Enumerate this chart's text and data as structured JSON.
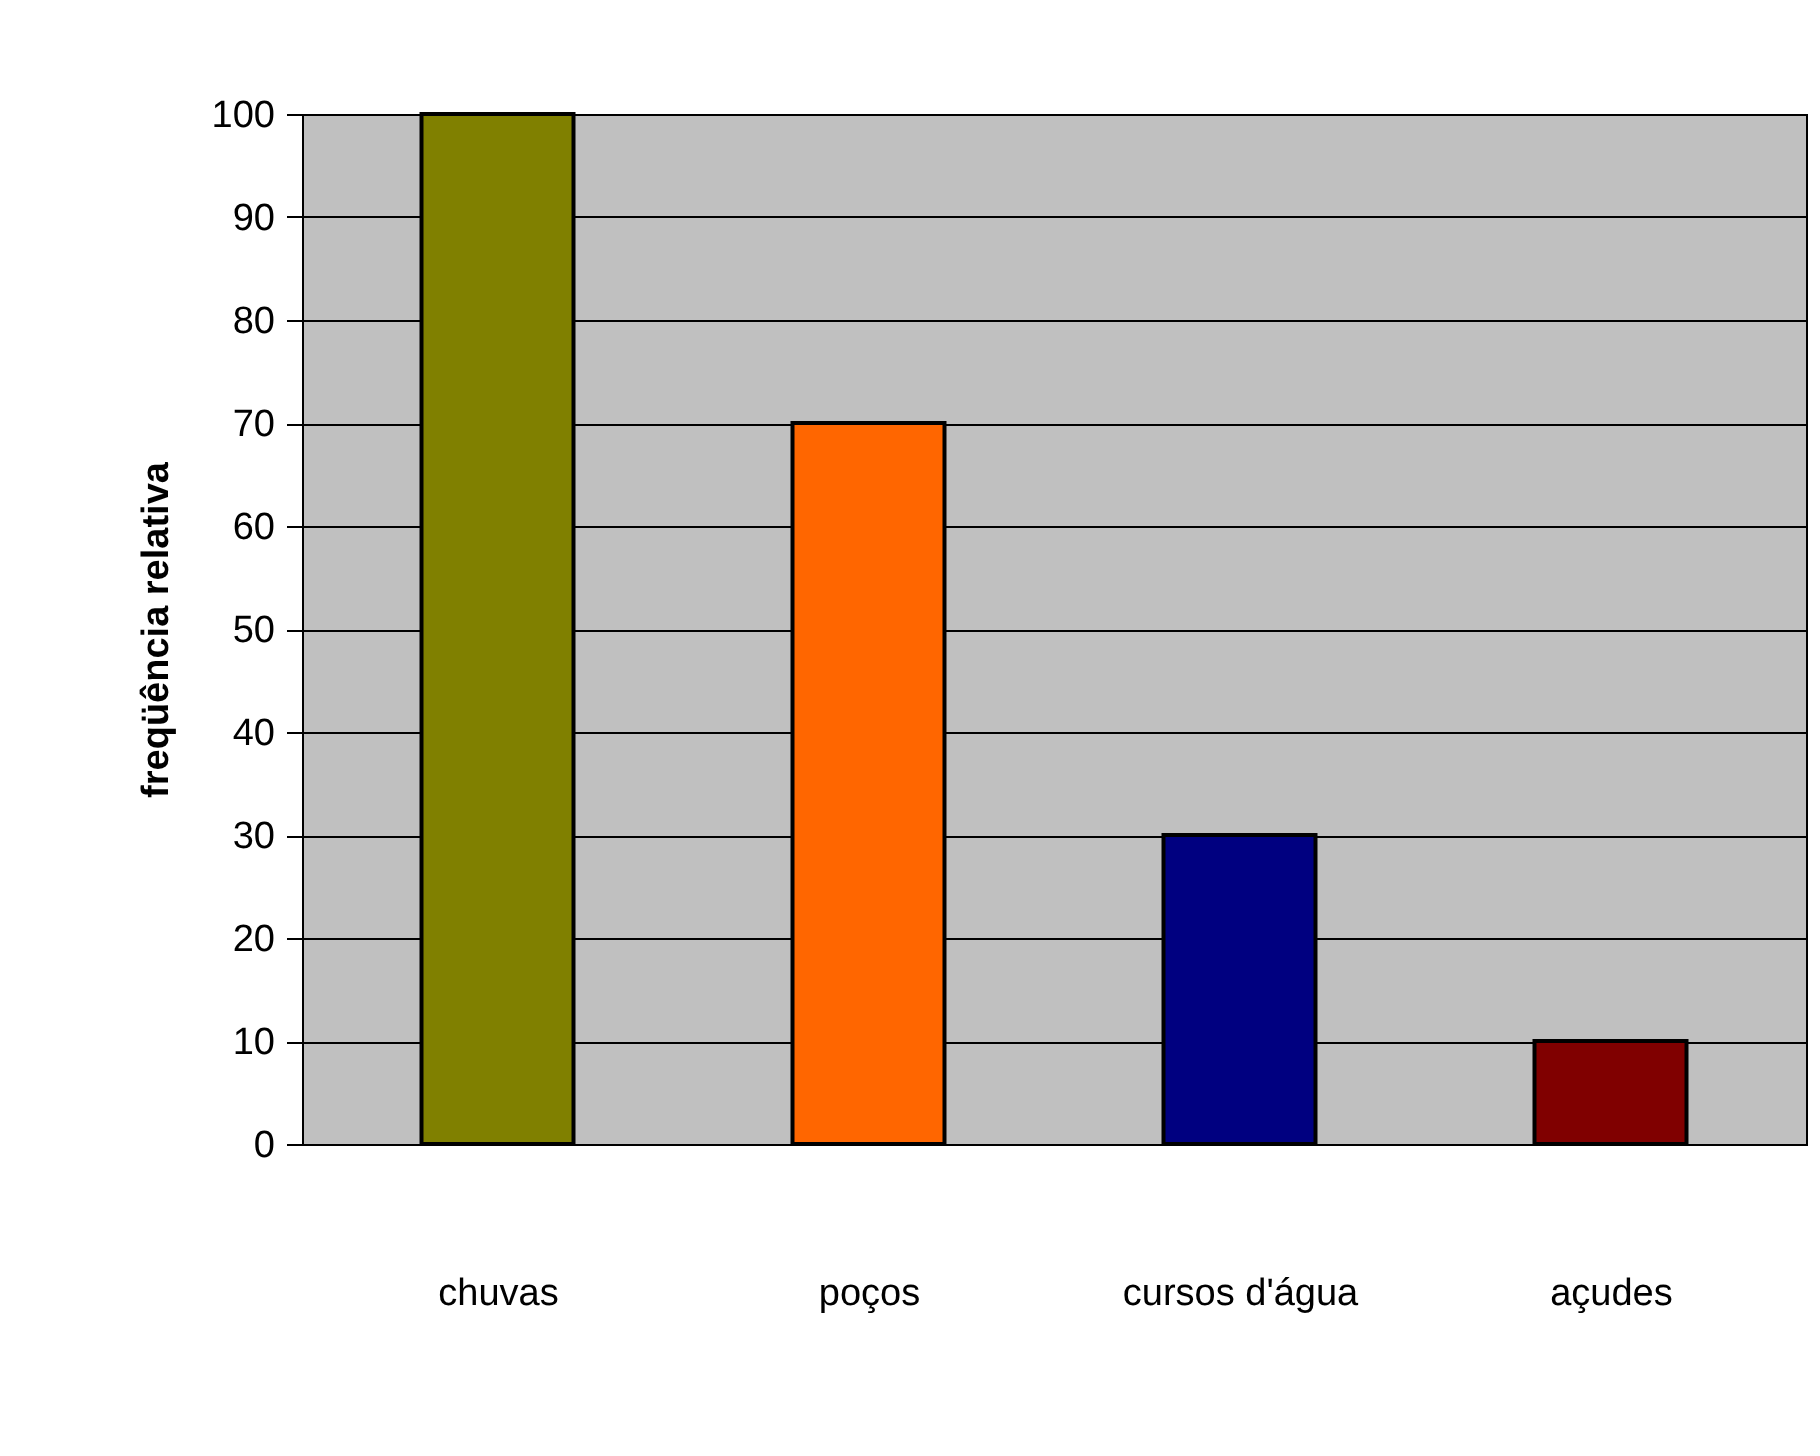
{
  "chart_data": {
    "type": "bar",
    "ylabel": "freqüência relativa",
    "categories": [
      "chuvas",
      "poços",
      "cursos d'água",
      "açudes"
    ],
    "values": [
      100,
      70,
      30,
      10
    ],
    "colors": [
      "#808000",
      "#ff6600",
      "#000080",
      "#800000"
    ],
    "ylim": [
      0,
      100
    ],
    "yticks": [
      0,
      10,
      20,
      30,
      40,
      50,
      60,
      70,
      80,
      90,
      100
    ],
    "grid": "y"
  }
}
